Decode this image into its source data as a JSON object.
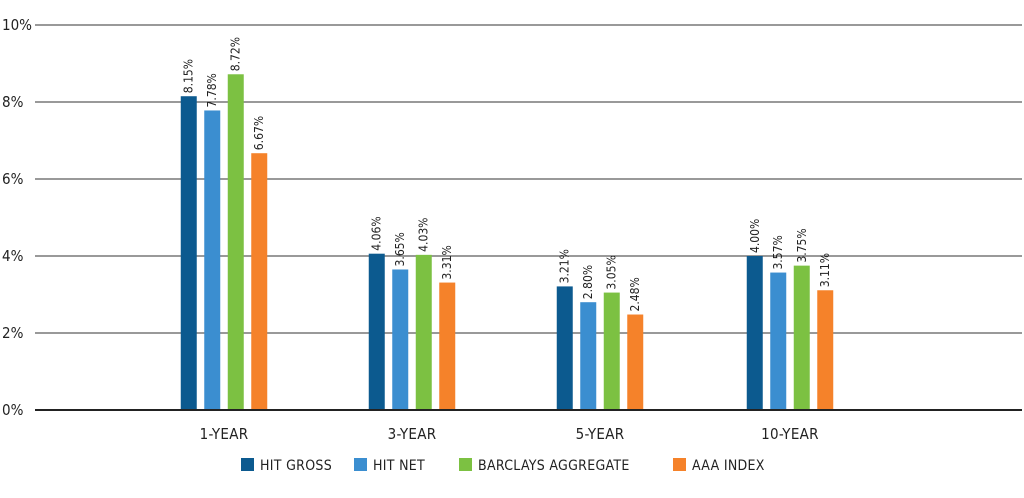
{
  "chart_data": {
    "type": "bar",
    "title": "",
    "xlabel": "",
    "ylabel": "",
    "categories": [
      "1-YEAR",
      "3-YEAR",
      "5-YEAR",
      "10-YEAR"
    ],
    "ylim": [
      0,
      10
    ],
    "yticks": [
      0,
      2,
      4,
      6,
      8,
      10
    ],
    "ytick_labels": [
      "0%",
      "2%",
      "4%",
      "6%",
      "8%",
      "10%"
    ],
    "grid": true,
    "legend_position": "bottom",
    "series": [
      {
        "name": "HIT GROSS",
        "color": "#0c5a8f",
        "values": [
          8.15,
          4.06,
          3.21,
          4.0
        ],
        "labels": [
          "8.15%",
          "4.06%",
          "3.21%",
          "4.00%"
        ]
      },
      {
        "name": "HIT NET",
        "color": "#3b8ed0",
        "values": [
          7.78,
          3.65,
          2.8,
          3.57
        ],
        "labels": [
          "7.78%",
          "3.65%",
          "2.80%",
          "3.57%"
        ]
      },
      {
        "name": "BARCLAYS AGGREGATE",
        "color": "#7cc142",
        "values": [
          8.72,
          4.03,
          3.05,
          3.75
        ],
        "labels": [
          "8.72%",
          "4.03%",
          "3.05%",
          "3.75%"
        ]
      },
      {
        "name": "AAA INDEX",
        "color": "#f5822a",
        "values": [
          6.67,
          3.31,
          2.48,
          3.11
        ],
        "labels": [
          "6.67%",
          "3.31%",
          "2.48%",
          "3.11%"
        ]
      }
    ]
  }
}
